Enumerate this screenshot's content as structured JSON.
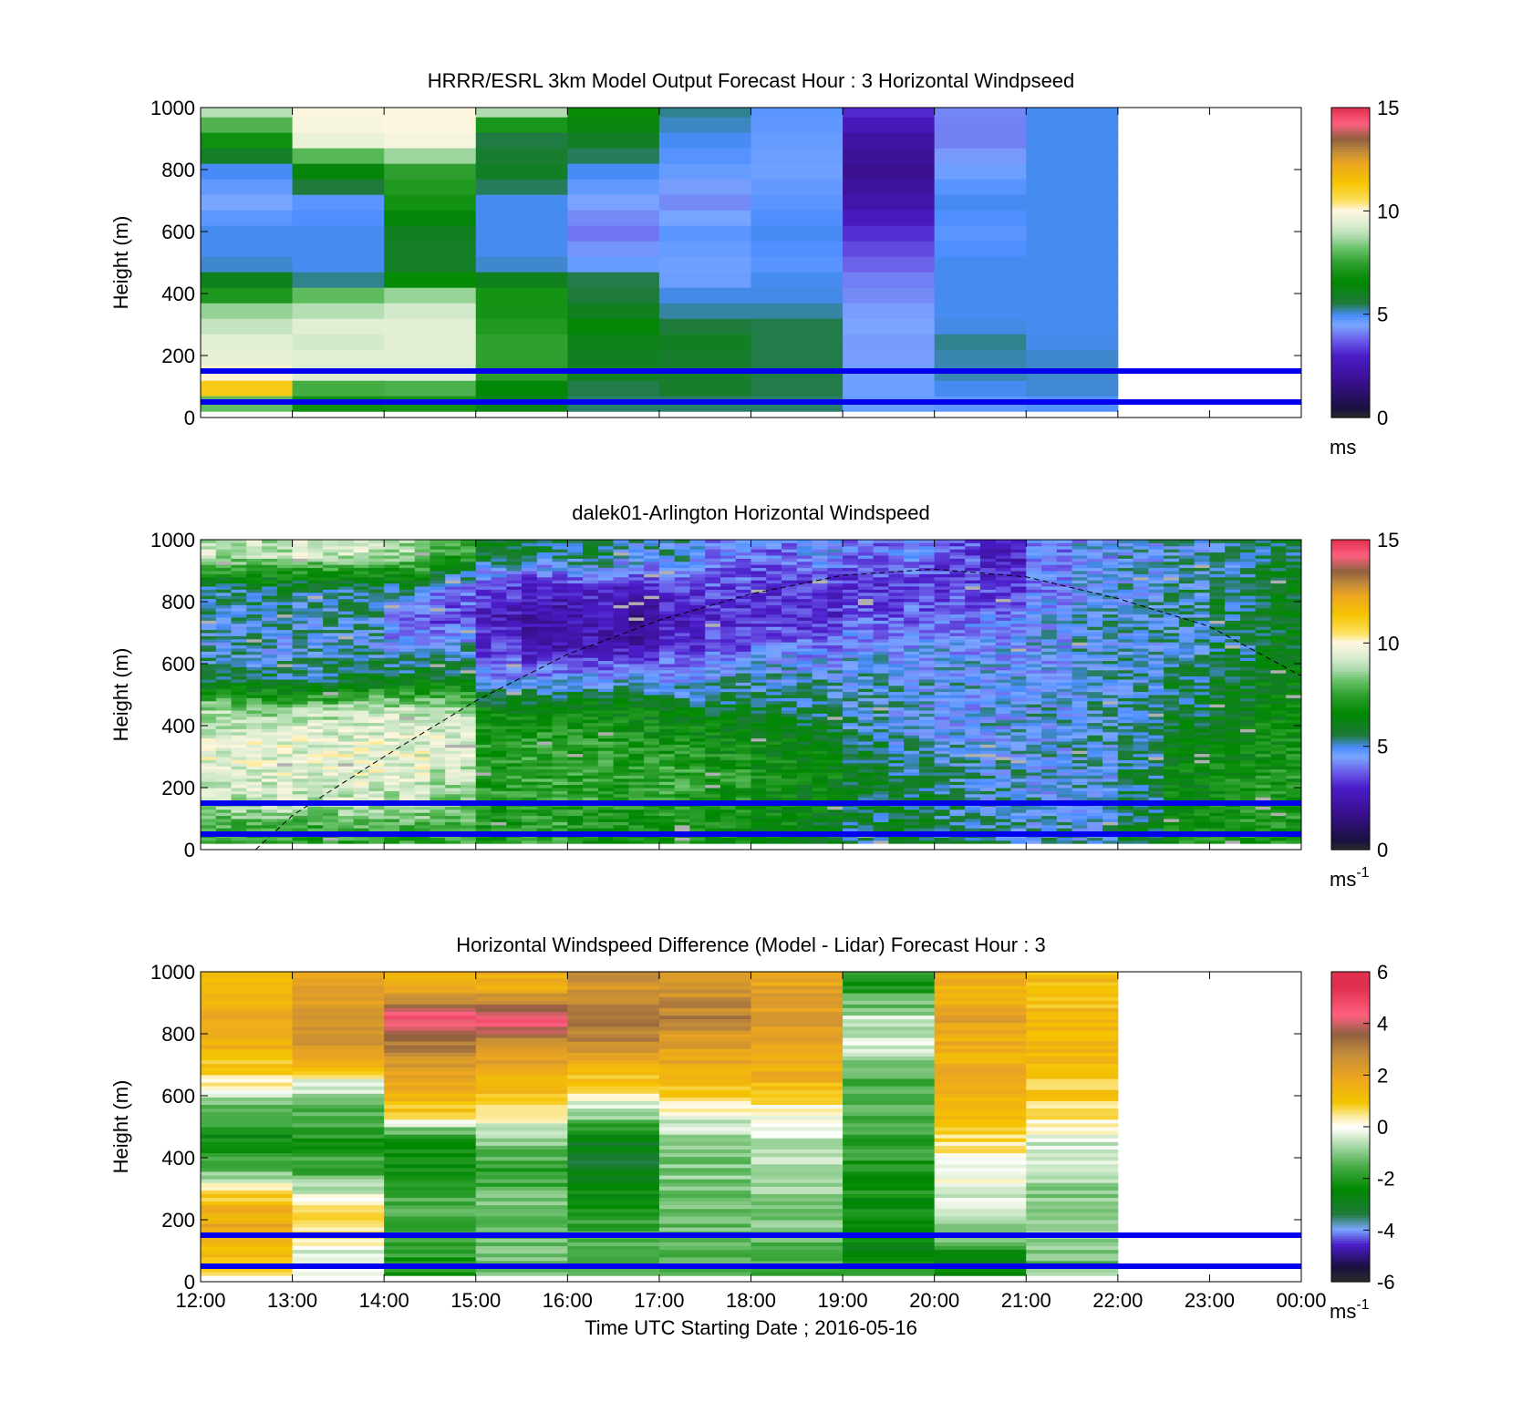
{
  "colors": {
    "windspeed_scale": [
      [
        0.0,
        "#2b2b2b"
      ],
      [
        0.03,
        "#1a1040"
      ],
      [
        0.12,
        "#3a1090"
      ],
      [
        0.2,
        "#4a1cc8"
      ],
      [
        0.25,
        "#6a5ae8"
      ],
      [
        0.3,
        "#7aa6ff"
      ],
      [
        0.33,
        "#4a8cff"
      ],
      [
        0.37,
        "#1e7a3a"
      ],
      [
        0.44,
        "#008800"
      ],
      [
        0.5,
        "#2fa02f"
      ],
      [
        0.55,
        "#6cc46c"
      ],
      [
        0.58,
        "#a8d8a8"
      ],
      [
        0.62,
        "#d8ecd0"
      ],
      [
        0.67,
        "#fff7e0"
      ],
      [
        0.7,
        "#fde060"
      ],
      [
        0.76,
        "#f5c400"
      ],
      [
        0.82,
        "#eca620"
      ],
      [
        0.86,
        "#c08a3a"
      ],
      [
        0.9,
        "#906040"
      ],
      [
        0.95,
        "#ff6080"
      ],
      [
        1.0,
        "#e03050"
      ]
    ],
    "difference_scale": [
      [
        0.0,
        "#2b2b2b"
      ],
      [
        0.05,
        "#1a1040"
      ],
      [
        0.12,
        "#4a1cc8"
      ],
      [
        0.17,
        "#7aa6ff"
      ],
      [
        0.22,
        "#1e7a3a"
      ],
      [
        0.3,
        "#008800"
      ],
      [
        0.38,
        "#4fb04f"
      ],
      [
        0.45,
        "#b8e0b8"
      ],
      [
        0.48,
        "#e8f4e0"
      ],
      [
        0.5,
        "#ffffff"
      ],
      [
        0.53,
        "#fdf0b0"
      ],
      [
        0.58,
        "#f5c400"
      ],
      [
        0.66,
        "#eca620"
      ],
      [
        0.74,
        "#c08a3a"
      ],
      [
        0.8,
        "#906040"
      ],
      [
        0.86,
        "#ff6080"
      ],
      [
        0.95,
        "#e03050"
      ],
      [
        1.0,
        "#e03050"
      ]
    ],
    "reference_lines": "#0000ee"
  },
  "chart_data": [
    {
      "type": "heatmap",
      "title": "HRRR/ESRL 3km Model Output   Forecast Hour : 3 Horizontal Windpseed",
      "ylabel": "Height (m)",
      "ylim": [
        0,
        1000
      ],
      "yticks": [
        "0",
        "200",
        "400",
        "600",
        "800",
        "1000"
      ],
      "xlim": [
        12,
        24
      ],
      "colorbar": {
        "range": [
          0,
          15
        ],
        "ticks": [
          "0",
          "5",
          "10",
          "15"
        ],
        "unit": "ms"
      },
      "reference_lines_m": [
        150,
        50
      ],
      "x_hours": [
        12,
        13,
        14,
        15,
        16,
        17,
        18,
        19,
        20,
        21
      ],
      "heights_m": [
        25,
        50,
        75,
        100,
        150,
        200,
        250,
        300,
        350,
        400,
        450,
        500,
        600,
        700,
        800,
        900,
        1000
      ],
      "values": [
        [
          6.5,
          8.5,
          12,
          11,
          10,
          9.5,
          9.5,
          9,
          8.5,
          7,
          6,
          5,
          5,
          4.5,
          5,
          7,
          9
        ],
        [
          4.5,
          7.5,
          7.5,
          7.8,
          9.5,
          9.5,
          9.2,
          9.5,
          8.8,
          8,
          5,
          5,
          5,
          4.8,
          6.5,
          9.8,
          10
        ],
        [
          5,
          7.5,
          8,
          7.8,
          9.5,
          9.5,
          9.5,
          9.5,
          9.2,
          8.5,
          6.5,
          5.8,
          6,
          7,
          7.5,
          10,
          10
        ],
        [
          5,
          6.5,
          6.5,
          6.5,
          7.5,
          7.5,
          7.5,
          7.2,
          7,
          7,
          6,
          5,
          5,
          5,
          6,
          5.5,
          9
        ],
        [
          5,
          5.5,
          5.5,
          5.5,
          6,
          6,
          6.2,
          6.5,
          6,
          5.5,
          5.5,
          4.6,
          4,
          4.5,
          5,
          6,
          6.8
        ],
        [
          5,
          5.5,
          5.8,
          5.8,
          5.8,
          5.8,
          6,
          5.5,
          5.2,
          5,
          4.6,
          4.6,
          4.8,
          4.2,
          4.7,
          5,
          5.3
        ],
        [
          5,
          5.5,
          5.5,
          5.5,
          5.5,
          5.5,
          5.5,
          5.5,
          5.2,
          5,
          5,
          4.8,
          5,
          4.8,
          4.6,
          4.7,
          4.8
        ],
        [
          4.6,
          4.7,
          4.6,
          4.6,
          4.6,
          4.4,
          4.4,
          4.5,
          4.4,
          4.2,
          4.1,
          3.8,
          3.2,
          2.3,
          1.8,
          2.2,
          3.2
        ],
        [
          4.6,
          4.8,
          5,
          5,
          5.2,
          5.2,
          5.3,
          5,
          5,
          5,
          5,
          5,
          4.8,
          5,
          4.6,
          4.1,
          4.2
        ],
        [
          4.8,
          4.9,
          5,
          5.1,
          5.1,
          5.1,
          5,
          5,
          5,
          5,
          5,
          5,
          5,
          5,
          5,
          5,
          5
        ]
      ]
    },
    {
      "type": "heatmap",
      "title": "dalek01-Arlington  Horizontal Windspeed",
      "ylabel": "Height (m)",
      "ylim": [
        0,
        1000
      ],
      "yticks": [
        "0",
        "200",
        "400",
        "600",
        "800",
        "1000"
      ],
      "xlim": [
        12,
        24
      ],
      "colorbar": {
        "range": [
          0,
          15
        ],
        "ticks": [
          "0",
          "5",
          "10",
          "15"
        ],
        "unit": "ms",
        "unit_exponent": "-1"
      },
      "reference_lines_m": [
        150,
        50
      ],
      "boundary_layer_curve": {
        "x_hours": [
          12.6,
          13,
          14,
          15,
          16,
          17,
          18,
          19,
          20,
          21,
          22,
          23,
          24
        ],
        "heights_m": [
          0,
          110,
          300,
          480,
          630,
          740,
          825,
          885,
          905,
          880,
          810,
          720,
          560
        ]
      },
      "hourly_profile": {
        "x_hours": [
          12.25,
          12.75,
          13.25,
          13.75,
          14.25,
          14.75,
          15.25,
          15.75,
          16.25,
          16.75,
          17.25,
          17.75,
          18.25,
          18.75,
          19.25,
          19.75,
          20.25,
          20.75,
          21.25,
          21.75,
          22.25,
          22.75,
          23.25,
          23.75
        ],
        "heights_m": [
          50,
          150,
          250,
          350,
          450,
          550,
          650,
          750,
          850,
          950
        ],
        "values": [
          [
            7.5,
            8.8,
            9.5,
            9.5,
            8.8,
            5.5,
            5,
            5,
            5.5,
            9
          ],
          [
            7.5,
            9,
            9.5,
            9.5,
            8.5,
            5.5,
            4.8,
            5,
            5.8,
            9
          ],
          [
            7.2,
            8.8,
            9.5,
            9.5,
            8.8,
            5.5,
            5,
            5,
            5.5,
            9.2
          ],
          [
            7.5,
            9,
            9.6,
            9.5,
            9.2,
            6,
            5,
            5.2,
            5.5,
            9.2
          ],
          [
            7.5,
            8.8,
            9.5,
            9.5,
            9,
            6,
            4.5,
            4,
            5.5,
            8.8
          ],
          [
            7.5,
            8.5,
            9,
            9.5,
            8.8,
            6.2,
            5,
            3.5,
            4.2,
            7.5
          ],
          [
            7,
            7.2,
            7.5,
            7.2,
            6.5,
            4.5,
            3.4,
            2.6,
            3.5,
            6
          ],
          [
            7.5,
            7.6,
            7.5,
            7.4,
            6.5,
            4.5,
            2.5,
            2.2,
            3,
            5.5
          ],
          [
            6.8,
            7.5,
            7.5,
            7.4,
            6.8,
            4.6,
            2.6,
            2.4,
            3.2,
            5.5
          ],
          [
            7,
            7.2,
            7.4,
            7,
            6.5,
            4.8,
            2.6,
            1.8,
            3.2,
            5
          ],
          [
            7,
            7.5,
            7.5,
            7,
            6,
            4.6,
            3.2,
            2.8,
            3.4,
            5
          ],
          [
            6.8,
            7,
            7.2,
            6.8,
            6,
            5,
            3.8,
            3,
            3.5,
            4.2
          ],
          [
            6.5,
            6.8,
            6.8,
            6.5,
            5.8,
            5,
            4.2,
            3.2,
            3.2,
            4
          ],
          [
            6,
            6.5,
            6.5,
            6.2,
            5.5,
            5,
            4.2,
            3.2,
            3.2,
            4.5
          ],
          [
            5.5,
            5.8,
            6,
            5.5,
            5,
            5,
            4.5,
            3.8,
            3.2,
            4
          ],
          [
            6,
            5.8,
            5.5,
            5,
            4.8,
            4.8,
            4.5,
            3.8,
            3.5,
            4.2
          ],
          [
            5.5,
            5.2,
            5.2,
            4.8,
            4.6,
            4.8,
            4.5,
            4,
            3.5,
            3.5
          ],
          [
            5.2,
            5,
            5,
            4.8,
            4.6,
            4.6,
            4.5,
            4.2,
            3.2,
            2.8
          ],
          [
            5,
            4.8,
            4.8,
            4.8,
            4.8,
            4.6,
            4.6,
            4.6,
            4.2,
            4.2
          ],
          [
            5,
            4.8,
            4.8,
            5,
            5,
            5,
            5,
            5,
            4.6,
            4.5
          ],
          [
            6,
            5.5,
            5.5,
            5.5,
            5.2,
            5,
            5,
            5,
            4.8,
            4.8
          ],
          [
            7,
            6.5,
            6.5,
            6,
            5.8,
            5.5,
            5.2,
            5.2,
            5.2,
            5
          ],
          [
            7.2,
            7,
            6.8,
            6.5,
            6.2,
            6,
            5.5,
            5.5,
            5.5,
            5.2
          ],
          [
            7,
            7.2,
            7,
            6.8,
            6.5,
            6.2,
            6,
            6,
            6,
            5.5
          ]
        ]
      }
    },
    {
      "type": "heatmap",
      "title": "Horizontal Windspeed Difference (Model - Lidar) Forecast Hour : 3",
      "ylabel": "Height (m)",
      "xlabel": "Time UTC  Starting Date ; 2016-05-16",
      "ylim": [
        0,
        1000
      ],
      "yticks": [
        "0",
        "200",
        "400",
        "600",
        "800",
        "1000"
      ],
      "xlim": [
        12,
        24
      ],
      "xticks": [
        "12:00",
        "13:00",
        "14:00",
        "15:00",
        "16:00",
        "17:00",
        "18:00",
        "19:00",
        "20:00",
        "21:00",
        "22:00",
        "23:00",
        "00:00"
      ],
      "colorbar": {
        "range": [
          -6,
          6
        ],
        "ticks": [
          "-6",
          "-4",
          "-2",
          "0",
          "2",
          "4",
          "6"
        ],
        "unit": "ms",
        "unit_exponent": "-1"
      },
      "reference_lines_m": [
        150,
        50
      ],
      "x_hours": [
        12,
        13,
        14,
        15,
        16,
        17,
        18,
        19,
        20,
        21
      ],
      "heights_m": [
        25,
        75,
        150,
        250,
        350,
        450,
        550,
        650,
        750,
        850,
        950
      ],
      "values": [
        [
          0.8,
          1,
          1.8,
          1.5,
          -1,
          -2.5,
          -1.5,
          0.5,
          1.5,
          2,
          1.2
        ],
        [
          0,
          -0.5,
          0.5,
          0.3,
          -1.5,
          -2,
          -1.5,
          0,
          2.5,
          2.8,
          2
        ],
        [
          -2,
          -2,
          -1.5,
          -1.5,
          -2,
          -2.5,
          1,
          2,
          3,
          4.5,
          1.5
        ],
        [
          -1,
          -1.2,
          -1.2,
          -1,
          -2,
          -1,
          0.5,
          1.5,
          2.5,
          4.5,
          1.8
        ],
        [
          -1.5,
          -1.5,
          -1.5,
          -2,
          -3,
          -3,
          -0.5,
          1,
          2.5,
          3.5,
          2.5
        ],
        [
          -1.5,
          -1.5,
          -1.2,
          -1.2,
          -1,
          -1,
          0,
          1.5,
          2,
          3,
          2.5
        ],
        [
          -1.5,
          -1.5,
          -1.2,
          -1,
          -0.8,
          -0.5,
          0,
          1.5,
          1.8,
          2.2,
          2
        ],
        [
          -2,
          -2.5,
          -2.5,
          -2.3,
          -2,
          -1.8,
          -1.5,
          -1.5,
          -0.5,
          -0.5,
          -2
        ],
        [
          -2.5,
          -2.8,
          -1,
          -0.5,
          0,
          0.5,
          1.5,
          1.8,
          1.5,
          2,
          1.5
        ],
        [
          -1,
          -1.2,
          -1,
          -1,
          -0.8,
          -0.3,
          0.5,
          1,
          1.5,
          1.2,
          1.2
        ]
      ]
    }
  ]
}
